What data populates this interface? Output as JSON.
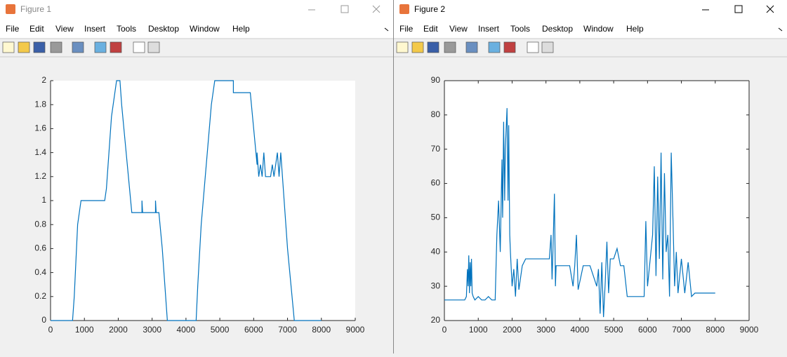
{
  "windows": [
    {
      "title": "Figure 1",
      "active": false,
      "menu": [
        "File",
        "Edit",
        "View",
        "Insert",
        "Tools",
        "Desktop",
        "Window",
        "Help"
      ],
      "chart": {
        "type": "line",
        "box": false,
        "color": "#0072bd",
        "xlim": [
          0,
          9000
        ],
        "xticks": [
          0,
          1000,
          2000,
          3000,
          4000,
          5000,
          6000,
          7000,
          8000,
          9000
        ],
        "ylim": [
          0,
          2
        ],
        "yticks": [
          0,
          0.2,
          0.4,
          0.6,
          0.8,
          1,
          1.2,
          1.4,
          1.6,
          1.8,
          2
        ],
        "x": [
          0,
          650,
          700,
          750,
          800,
          850,
          900,
          1600,
          1650,
          1700,
          1750,
          1800,
          1900,
          1950,
          2050,
          2100,
          2200,
          2300,
          2400,
          2700,
          2700,
          2720,
          3100,
          3100,
          3120,
          3200,
          3300,
          3400,
          3450,
          4300,
          4350,
          4450,
          4600,
          4750,
          4850,
          5400,
          5400,
          5900,
          6000,
          6100,
          6100,
          6150,
          6200,
          6250,
          6300,
          6350,
          6500,
          6550,
          6600,
          6700,
          6750,
          6800,
          6850,
          6900,
          7000,
          7100,
          7200,
          8000
        ],
        "values": [
          0,
          0,
          0.2,
          0.5,
          0.8,
          0.9,
          1,
          1,
          1.1,
          1.3,
          1.5,
          1.7,
          1.9,
          2,
          2,
          1.8,
          1.5,
          1.2,
          0.9,
          0.9,
          1,
          0.9,
          0.9,
          1,
          0.9,
          0.9,
          0.6,
          0.2,
          0,
          0,
          0.3,
          0.8,
          1.3,
          1.8,
          2,
          2,
          1.9,
          1.9,
          1.6,
          1.3,
          1.4,
          1.2,
          1.3,
          1.2,
          1.4,
          1.2,
          1.2,
          1.3,
          1.2,
          1.4,
          1.2,
          1.4,
          1.2,
          1,
          0.6,
          0.3,
          0,
          0
        ]
      }
    },
    {
      "title": "Figure 2",
      "active": true,
      "menu": [
        "File",
        "Edit",
        "View",
        "Insert",
        "Tools",
        "Desktop",
        "Window",
        "Help"
      ],
      "chart": {
        "type": "line",
        "box": true,
        "color": "#0072bd",
        "xlim": [
          0,
          9000
        ],
        "xticks": [
          0,
          1000,
          2000,
          3000,
          4000,
          5000,
          6000,
          7000,
          8000,
          9000
        ],
        "ylim": [
          20,
          90
        ],
        "yticks": [
          20,
          30,
          40,
          50,
          60,
          70,
          80,
          90
        ],
        "x": [
          0,
          600,
          650,
          680,
          700,
          720,
          740,
          760,
          780,
          800,
          820,
          850,
          900,
          1000,
          1100,
          1200,
          1300,
          1400,
          1500,
          1550,
          1600,
          1650,
          1700,
          1720,
          1750,
          1780,
          1800,
          1850,
          1880,
          1900,
          1930,
          1950,
          2000,
          2050,
          2100,
          2150,
          2200,
          2300,
          2400,
          3000,
          3100,
          3150,
          3180,
          3200,
          3250,
          3280,
          3300,
          3400,
          3500,
          3600,
          3700,
          3800,
          3850,
          3900,
          3950,
          4100,
          4300,
          4400,
          4500,
          4550,
          4600,
          4650,
          4700,
          4750,
          4800,
          4850,
          4900,
          5000,
          5100,
          5200,
          5300,
          5400,
          5900,
          5950,
          6000,
          6100,
          6150,
          6200,
          6250,
          6300,
          6350,
          6400,
          6450,
          6500,
          6550,
          6600,
          6650,
          6700,
          6750,
          6800,
          6850,
          6900,
          7000,
          7100,
          7200,
          7300,
          7400,
          8000
        ],
        "values": [
          26,
          26,
          27,
          35,
          30,
          39,
          28,
          37,
          30,
          38,
          28,
          27,
          26,
          27,
          26,
          26,
          27,
          26,
          26,
          45,
          55,
          40,
          67,
          50,
          78,
          55,
          70,
          82,
          55,
          77,
          45,
          40,
          30,
          35,
          27,
          38,
          29,
          36,
          38,
          38,
          38,
          45,
          32,
          38,
          57,
          30,
          36,
          36,
          36,
          36,
          36,
          30,
          36,
          45,
          29,
          36,
          36,
          33,
          30,
          35,
          22,
          37,
          21,
          31,
          43,
          28,
          38,
          38,
          41,
          36,
          36,
          27,
          27,
          49,
          30,
          40,
          45,
          65,
          33,
          62,
          38,
          69,
          32,
          63,
          40,
          45,
          27,
          69,
          50,
          30,
          40,
          28,
          38,
          28,
          37,
          27,
          28,
          28
        ]
      }
    }
  ]
}
